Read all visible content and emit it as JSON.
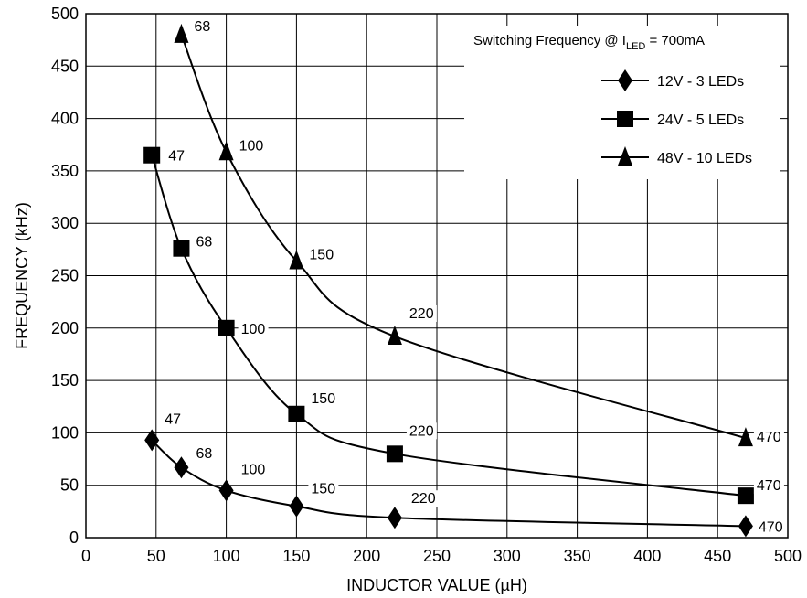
{
  "chart_data": {
    "type": "line",
    "title": "",
    "xlabel": "INDUCTOR VALUE (µH)",
    "ylabel": "FREQUENCY (kHz)",
    "xlim": [
      0,
      500
    ],
    "ylim": [
      0,
      500
    ],
    "xticks": [
      0,
      50,
      100,
      150,
      200,
      250,
      300,
      350,
      400,
      450,
      500
    ],
    "yticks": [
      0,
      50,
      100,
      150,
      200,
      250,
      300,
      350,
      400,
      450,
      500
    ],
    "grid": true,
    "legend": {
      "title_prefix": "Switching Frequency @ I",
      "title_subscript": "LED",
      "title_suffix": " = 700mA",
      "position": "top-right"
    },
    "series": [
      {
        "name": "12V - 3 LEDs",
        "marker": "diamond",
        "x": [
          47,
          68,
          100,
          150,
          220,
          470
        ],
        "y": [
          93,
          67,
          45,
          30,
          19,
          11
        ],
        "labels": [
          "47",
          "68",
          "100",
          "150",
          "220",
          "470"
        ]
      },
      {
        "name": "24V - 5 LEDs",
        "marker": "square",
        "x": [
          47,
          68,
          100,
          150,
          220,
          470
        ],
        "y": [
          365,
          276,
          200,
          118,
          80,
          40
        ],
        "labels": [
          "47",
          "68",
          "100",
          "150",
          "220",
          "470"
        ]
      },
      {
        "name": "48V - 10 LEDs",
        "marker": "triangle",
        "x": [
          68,
          100,
          150,
          220,
          470
        ],
        "y": [
          480,
          368,
          264,
          192,
          95
        ],
        "labels": [
          "68",
          "100",
          "150",
          "220",
          "470"
        ]
      }
    ]
  }
}
